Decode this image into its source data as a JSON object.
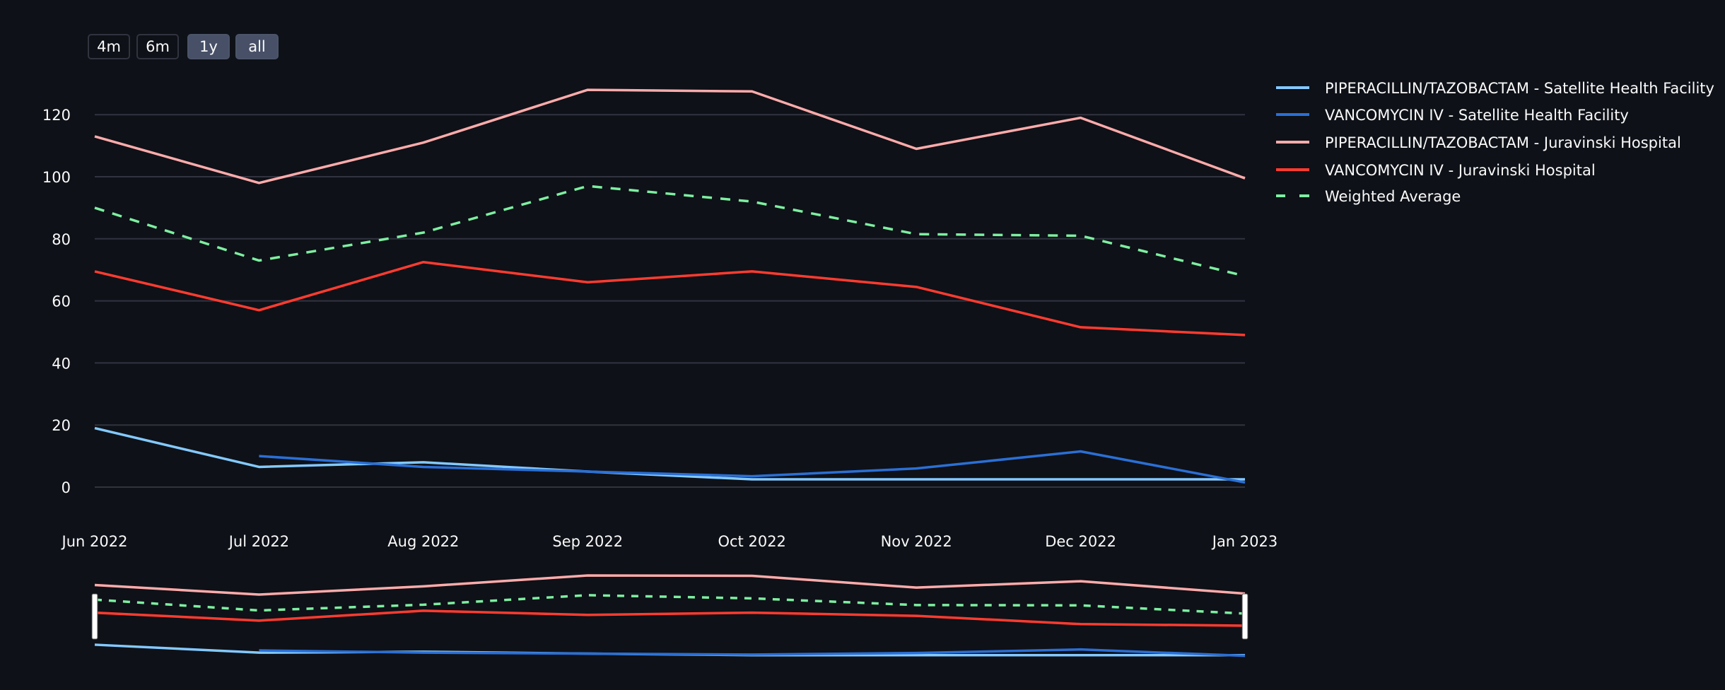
{
  "range_buttons": [
    {
      "label": "4m",
      "active": false
    },
    {
      "label": "6m",
      "active": false
    },
    {
      "label": "1y",
      "active": true
    },
    {
      "label": "all",
      "active": true
    }
  ],
  "chart_data": {
    "type": "line",
    "title": "",
    "xlabel": "",
    "ylabel": "",
    "categories": [
      "Jun 2022",
      "Jul 2022",
      "Aug 2022",
      "Sep 2022",
      "Oct 2022",
      "Nov 2022",
      "Dec 2022",
      "Jan 2023"
    ],
    "y_ticks": [
      0,
      20,
      40,
      60,
      80,
      100,
      120
    ],
    "ylim": [
      -5,
      130
    ],
    "grid": true,
    "legend_position": "right",
    "range_slider": true,
    "series": [
      {
        "name": "PIPERACILLIN/TAZOBACTAM - Satellite Health Facility",
        "color": "#83c9ff",
        "dash": false,
        "values": [
          19,
          6.5,
          8,
          5,
          2.5,
          2.5,
          2.5,
          2.5
        ]
      },
      {
        "name": "VANCOMYCIN IV - Satellite Health Facility",
        "color": "#2a6fd6",
        "dash": false,
        "values": [
          null,
          10,
          6.5,
          5,
          3.5,
          6,
          11.5,
          1.5
        ]
      },
      {
        "name": "PIPERACILLIN/TAZOBACTAM - Juravinski Hospital",
        "color": "#ffabab",
        "dash": false,
        "values": [
          113,
          98,
          111,
          128,
          127.5,
          109,
          119,
          99.5
        ]
      },
      {
        "name": "VANCOMYCIN IV - Juravinski Hospital",
        "color": "#ff3b30",
        "dash": false,
        "values": [
          69.5,
          57,
          72.5,
          66,
          69.5,
          64.5,
          51.5,
          49
        ]
      },
      {
        "name": "Weighted Average",
        "color": "#7defa1",
        "dash": true,
        "values": [
          90,
          73,
          82,
          97,
          92,
          81.5,
          81,
          68
        ]
      }
    ]
  }
}
